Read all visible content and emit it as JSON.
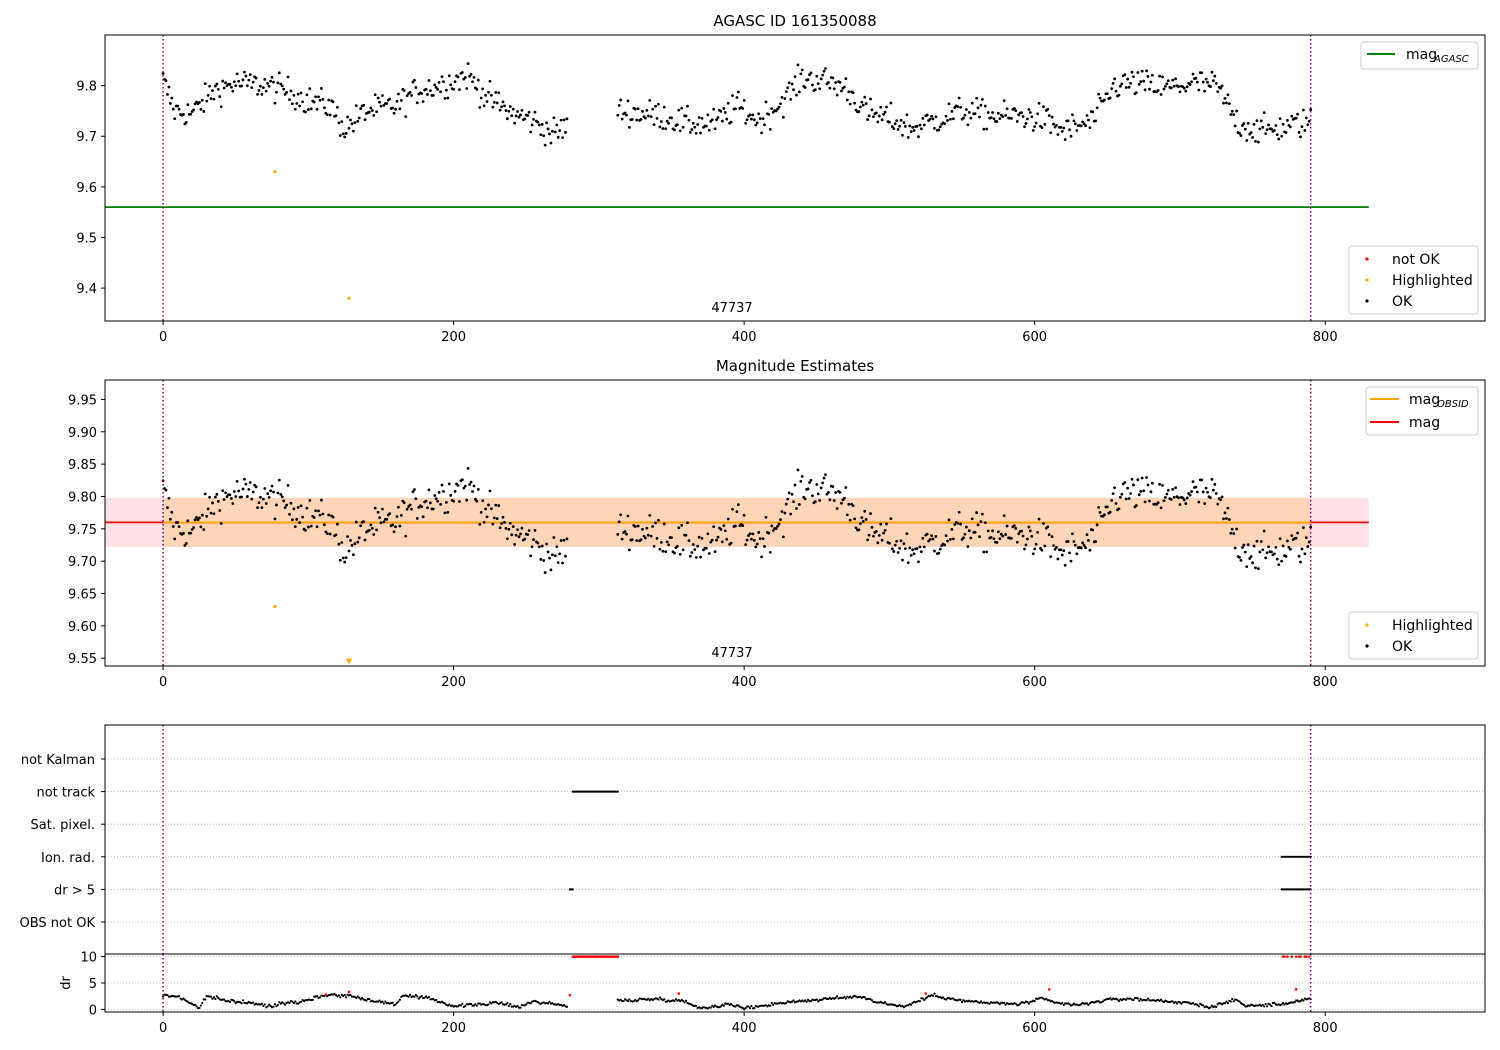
{
  "chart_data": [
    {
      "id": "agasc",
      "type": "scatter",
      "title": "AGASC ID 161350088",
      "x_range": [
        -40,
        910
      ],
      "ylim": [
        9.335,
        9.9
      ],
      "x_ticks": [
        "0",
        "200",
        "400",
        "600",
        "800"
      ],
      "x_tick_values": [
        0,
        200,
        400,
        600,
        800
      ],
      "y_tick_values": [
        9.4,
        9.5,
        9.6,
        9.7,
        9.8
      ],
      "y_ticks": [
        "9.4",
        "9.5",
        "9.6",
        "9.7",
        "9.8"
      ],
      "annotation": "47737",
      "annotation_x": 395,
      "obsid_boundaries": [
        0,
        790
      ],
      "reference_lines": [
        {
          "name": "mag",
          "sub": "AGASC",
          "value": 9.56,
          "x": [
            -40,
            830
          ],
          "color": "#008000"
        }
      ],
      "legend_upper": [
        {
          "label": "mag",
          "sub": "AGASC",
          "color": "#008000",
          "kind": "line"
        }
      ],
      "legend_lower": [
        {
          "label": "not OK",
          "color": "#ff0000",
          "kind": "dot"
        },
        {
          "label": "Highlighted",
          "color": "#ffa500",
          "kind": "dot"
        },
        {
          "label": "OK",
          "color": "#000000",
          "kind": "dot"
        }
      ],
      "highlighted": [
        [
          77,
          9.63
        ],
        [
          128,
          9.38
        ]
      ],
      "ok_segments": [
        {
          "x": [
            0,
            278
          ],
          "knots": [
            [
              0,
              9.81
            ],
            [
              8,
              9.75
            ],
            [
              20,
              9.745
            ],
            [
              35,
              9.79
            ],
            [
              50,
              9.805
            ],
            [
              70,
              9.8
            ],
            [
              85,
              9.79
            ],
            [
              100,
              9.77
            ],
            [
              115,
              9.76
            ],
            [
              125,
              9.715
            ],
            [
              140,
              9.75
            ],
            [
              160,
              9.76
            ],
            [
              175,
              9.79
            ],
            [
              195,
              9.805
            ],
            [
              210,
              9.82
            ],
            [
              222,
              9.78
            ],
            [
              240,
              9.745
            ],
            [
              255,
              9.73
            ],
            [
              268,
              9.705
            ],
            [
              278,
              9.72
            ]
          ]
        },
        {
          "x": [
            313,
            790
          ],
          "knots": [
            [
              313,
              9.75
            ],
            [
              330,
              9.745
            ],
            [
              345,
              9.74
            ],
            [
              360,
              9.725
            ],
            [
              380,
              9.725
            ],
            [
              395,
              9.76
            ],
            [
              410,
              9.73
            ],
            [
              425,
              9.765
            ],
            [
              440,
              9.815
            ],
            [
              455,
              9.81
            ],
            [
              470,
              9.795
            ],
            [
              485,
              9.745
            ],
            [
              500,
              9.735
            ],
            [
              515,
              9.715
            ],
            [
              530,
              9.73
            ],
            [
              550,
              9.75
            ],
            [
              570,
              9.74
            ],
            [
              590,
              9.74
            ],
            [
              605,
              9.735
            ],
            [
              620,
              9.71
            ],
            [
              640,
              9.73
            ],
            [
              655,
              9.8
            ],
            [
              670,
              9.805
            ],
            [
              690,
              9.795
            ],
            [
              710,
              9.805
            ],
            [
              725,
              9.8
            ],
            [
              740,
              9.725
            ],
            [
              755,
              9.71
            ],
            [
              775,
              9.72
            ],
            [
              790,
              9.73
            ]
          ]
        }
      ]
    },
    {
      "id": "estimates",
      "type": "scatter",
      "title": "Magnitude Estimates",
      "x_range": [
        -40,
        910
      ],
      "ylim": [
        9.538,
        9.98
      ],
      "x_ticks": [
        "0",
        "200",
        "400",
        "600",
        "800"
      ],
      "x_tick_values": [
        0,
        200,
        400,
        600,
        800
      ],
      "y_tick_values": [
        9.55,
        9.6,
        9.65,
        9.7,
        9.75,
        9.8,
        9.85,
        9.9,
        9.95
      ],
      "y_ticks": [
        "9.55",
        "9.60",
        "9.65",
        "9.70",
        "9.75",
        "9.80",
        "9.85",
        "9.90",
        "9.95"
      ],
      "annotation": "47737",
      "annotation_x": 395,
      "obsid_boundaries": [
        0,
        790
      ],
      "bands": [
        {
          "x": [
            -40,
            830
          ],
          "y": [
            9.722,
            9.798
          ],
          "color": "#ffb6c1",
          "opacity": 0.4
        },
        {
          "x": [
            0,
            790
          ],
          "y": [
            9.722,
            9.798
          ],
          "color": "#ffa500",
          "opacity": 0.2
        }
      ],
      "reference_lines": [
        {
          "name": "mag",
          "value": 9.76,
          "x": [
            -40,
            830
          ],
          "color": "#ff0000"
        },
        {
          "name": "mag",
          "sub": "OBSID",
          "value": 9.76,
          "x": [
            0,
            790
          ],
          "color": "#ffa500"
        }
      ],
      "legend_upper": [
        {
          "label": "mag",
          "sub": "OBSID",
          "color": "#ffa500",
          "kind": "line"
        },
        {
          "label": "mag",
          "color": "#ff0000",
          "kind": "line"
        }
      ],
      "legend_lower": [
        {
          "label": "Highlighted",
          "color": "#ffa500",
          "kind": "dot"
        },
        {
          "label": "OK",
          "color": "#000000",
          "kind": "dot"
        }
      ],
      "highlighted": [
        [
          77,
          9.63
        ]
      ],
      "clipped_highlight": [
        128,
        9.545
      ]
    },
    {
      "id": "flags",
      "type": "scatter",
      "x_range": [
        -40,
        910
      ],
      "x_ticks": [
        "0",
        "200",
        "400",
        "600",
        "800"
      ],
      "x_tick_values": [
        0,
        200,
        400,
        600,
        800
      ],
      "categories": [
        "not Kalman",
        "not track",
        "Sat. pixel.",
        "Ion. rad.",
        "dr > 5",
        "OBS not OK"
      ],
      "flag_ranges": [
        {
          "flag": "not track",
          "x": [
            282,
            313
          ]
        },
        {
          "flag": "dr > 5",
          "x": [
            280,
            282
          ]
        },
        {
          "flag": "Ion. rad.",
          "x": [
            770,
            790
          ]
        },
        {
          "flag": "dr > 5",
          "x": [
            770,
            790
          ]
        }
      ],
      "obsid_boundaries": [
        0,
        790
      ]
    },
    {
      "id": "dr",
      "type": "scatter",
      "ylabel": "dr",
      "x_range": [
        -40,
        910
      ],
      "ylim": [
        -0.5,
        10.5
      ],
      "y_tick_values": [
        0,
        5,
        10
      ],
      "y_ticks": [
        "0",
        "5",
        "10"
      ],
      "x_ticks": [
        "0",
        "200",
        "400",
        "600",
        "800"
      ],
      "x_tick_values": [
        0,
        200,
        400,
        600,
        800
      ],
      "obsid_boundaries": [
        0,
        790
      ],
      "dr_segments": [
        {
          "x": [
            0,
            278
          ],
          "knots": [
            [
              0,
              2.6
            ],
            [
              10,
              2.5
            ],
            [
              20,
              1.0
            ],
            [
              25,
              0.3
            ],
            [
              30,
              2.5
            ],
            [
              40,
              1.8
            ],
            [
              60,
              1.2
            ],
            [
              75,
              0.5
            ],
            [
              80,
              1.2
            ],
            [
              95,
              1.5
            ],
            [
              110,
              2.6
            ],
            [
              115,
              2.8
            ],
            [
              130,
              2.5
            ],
            [
              145,
              1.6
            ],
            [
              160,
              1.0
            ],
            [
              165,
              2.6
            ],
            [
              185,
              2.0
            ],
            [
              200,
              0.6
            ],
            [
              230,
              1.2
            ],
            [
              245,
              0.5
            ],
            [
              255,
              1.5
            ],
            [
              270,
              1.0
            ],
            [
              278,
              0.6
            ]
          ]
        },
        {
          "x": [
            313,
            790
          ],
          "knots": [
            [
              313,
              1.6
            ],
            [
              340,
              2.0
            ],
            [
              360,
              1.5
            ],
            [
              370,
              0.2
            ],
            [
              390,
              1.0
            ],
            [
              400,
              0.2
            ],
            [
              430,
              1.4
            ],
            [
              455,
              1.9
            ],
            [
              480,
              2.5
            ],
            [
              490,
              1.5
            ],
            [
              510,
              0.5
            ],
            [
              530,
              2.7
            ],
            [
              550,
              1.6
            ],
            [
              570,
              1.2
            ],
            [
              590,
              1.0
            ],
            [
              605,
              2.0
            ],
            [
              615,
              1.2
            ],
            [
              630,
              0.8
            ],
            [
              650,
              1.8
            ],
            [
              665,
              2.0
            ],
            [
              690,
              1.6
            ],
            [
              710,
              1.0
            ],
            [
              720,
              0.4
            ],
            [
              730,
              1.2
            ],
            [
              740,
              1.8
            ],
            [
              745,
              0.6
            ],
            [
              770,
              1.0
            ],
            [
              790,
              2.0
            ]
          ]
        }
      ],
      "dr_red": [
        [
          283,
          10
        ],
        [
          288,
          10
        ],
        [
          293,
          10
        ],
        [
          298,
          10
        ],
        [
          303,
          10
        ],
        [
          308,
          10
        ],
        [
          313,
          10
        ],
        [
          772,
          10
        ],
        [
          777,
          10
        ],
        [
          782,
          10
        ],
        [
          787,
          10
        ],
        [
          280,
          2.7
        ],
        [
          128,
          3.3
        ],
        [
          112,
          2.8
        ],
        [
          355,
          3.0
        ],
        [
          525,
          3.0
        ],
        [
          610,
          3.8
        ],
        [
          780,
          3.8
        ]
      ]
    }
  ]
}
